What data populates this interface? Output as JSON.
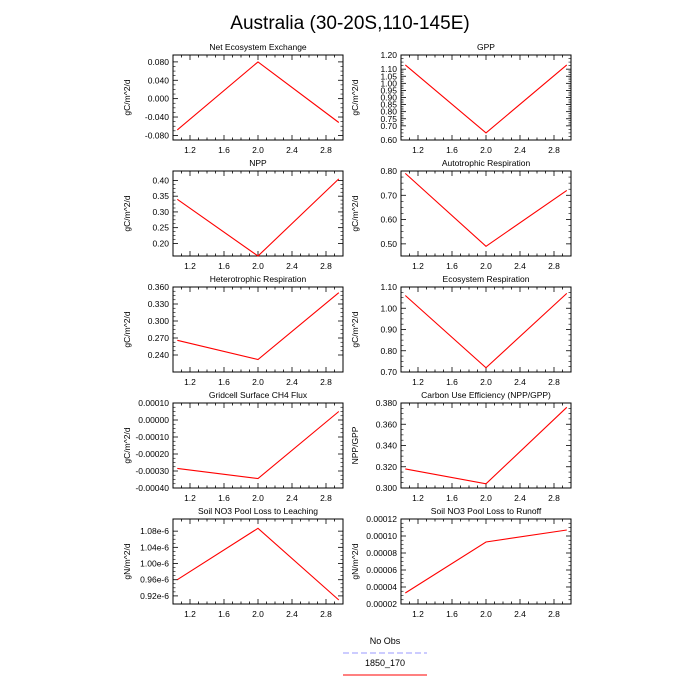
{
  "title": "Australia (30-20S,110-145E)",
  "legend": {
    "placement": "bottom-center",
    "entries": [
      {
        "label": "No Obs",
        "color": "#9999ff",
        "dash": true
      },
      {
        "label": "1850_170",
        "color": "#ff0000",
        "dash": false
      }
    ]
  },
  "chart_data": [
    {
      "type": "line",
      "title": "Net Ecosystem Exchange",
      "ylabel": "gC/m^2/d",
      "xlim": [
        1,
        3
      ],
      "ylim": [
        -0.09,
        0.095
      ],
      "xticks": [
        "1.2",
        "1.6",
        "2.0",
        "2.4",
        "2.8"
      ],
      "yticks": [
        -0.08,
        -0.04,
        0.0,
        0.04,
        0.08
      ],
      "yticklabels": [
        "-0.080",
        "-0.040",
        "0.000",
        "0.040",
        "0.080"
      ],
      "series": [
        {
          "color": "#ff0000",
          "x": [
            1.05,
            2.0,
            2.95
          ],
          "y": [
            -0.068,
            0.08,
            -0.052
          ]
        }
      ]
    },
    {
      "type": "line",
      "title": "GPP",
      "ylabel": "gC/m^2/d",
      "xlim": [
        1,
        3
      ],
      "ylim": [
        0.6,
        1.2
      ],
      "xticks": [
        "1.2",
        "1.6",
        "2.0",
        "2.4",
        "2.8"
      ],
      "yticks": [
        0.6,
        0.7,
        0.75,
        0.8,
        0.85,
        0.9,
        0.95,
        1.0,
        1.05,
        1.1,
        1.2
      ],
      "yticklabels": [
        "0.60",
        "0.70",
        "0.75",
        "0.80",
        "0.85",
        "0.90",
        "0.95",
        "1.00",
        "1.05",
        "1.10",
        "1.20"
      ],
      "series": [
        {
          "color": "#ff0000",
          "x": [
            1.05,
            2.0,
            2.95
          ],
          "y": [
            1.13,
            0.65,
            1.13
          ]
        }
      ]
    },
    {
      "type": "line",
      "title": "NPP",
      "ylabel": "gC/m^2/d",
      "xlim": [
        1,
        3
      ],
      "ylim": [
        0.16,
        0.43
      ],
      "xticks": [
        "1.2",
        "1.6",
        "2.0",
        "2.4",
        "2.8"
      ],
      "yticks": [
        0.2,
        0.25,
        0.3,
        0.35,
        0.4
      ],
      "yticklabels": [
        "0.20",
        "0.25",
        "0.30",
        "0.35",
        "0.40"
      ],
      "series": [
        {
          "color": "#ff0000",
          "x": [
            1.05,
            2.0,
            2.95
          ],
          "y": [
            0.34,
            0.16,
            0.405
          ]
        }
      ]
    },
    {
      "type": "line",
      "title": "Autotrophic Respiration",
      "ylabel": "gC/m^2/d",
      "xlim": [
        1,
        3
      ],
      "ylim": [
        0.45,
        0.8
      ],
      "xticks": [
        "1.2",
        "1.6",
        "2.0",
        "2.4",
        "2.8"
      ],
      "yticks": [
        0.5,
        0.6,
        0.7,
        0.8
      ],
      "yticklabels": [
        "0.50",
        "0.60",
        "0.70",
        "0.80"
      ],
      "series": [
        {
          "color": "#ff0000",
          "x": [
            1.05,
            2.0,
            2.95
          ],
          "y": [
            0.79,
            0.49,
            0.72
          ]
        }
      ]
    },
    {
      "type": "line",
      "title": "Heterotrophic Respiration",
      "ylabel": "gC/m^2/d",
      "xlim": [
        1,
        3
      ],
      "ylim": [
        0.21,
        0.36
      ],
      "xticks": [
        "1.2",
        "1.6",
        "2.0",
        "2.4",
        "2.8"
      ],
      "yticks": [
        0.24,
        0.27,
        0.3,
        0.33,
        0.36
      ],
      "yticklabels": [
        "0.240",
        "0.270",
        "0.300",
        "0.330",
        "0.360"
      ],
      "series": [
        {
          "color": "#ff0000",
          "x": [
            1.05,
            2.0,
            2.95
          ],
          "y": [
            0.266,
            0.232,
            0.35
          ]
        }
      ]
    },
    {
      "type": "line",
      "title": "Ecosystem Respiration",
      "ylabel": "gC/m^2/d",
      "xlim": [
        1,
        3
      ],
      "ylim": [
        0.7,
        1.1
      ],
      "xticks": [
        "1.2",
        "1.6",
        "2.0",
        "2.4",
        "2.8"
      ],
      "yticks": [
        0.7,
        0.8,
        0.9,
        1.0,
        1.1
      ],
      "yticklabels": [
        "0.70",
        "0.80",
        "0.90",
        "1.00",
        "1.10"
      ],
      "series": [
        {
          "color": "#ff0000",
          "x": [
            1.05,
            2.0,
            2.95
          ],
          "y": [
            1.06,
            0.72,
            1.07
          ]
        }
      ]
    },
    {
      "type": "line",
      "title": "Gridcell Surface CH4 Flux",
      "ylabel": "gC/m^2/d",
      "xlim": [
        1,
        3
      ],
      "ylim": [
        -0.0004,
        0.0001
      ],
      "xticks": [
        "1.2",
        "1.6",
        "2.0",
        "2.4",
        "2.8"
      ],
      "yticks": [
        -0.0004,
        -0.0003,
        -0.0002,
        -0.0001,
        0.0,
        0.0001
      ],
      "yticklabels": [
        "-0.00040",
        "-0.00030",
        "-0.00020",
        "-0.00010",
        "0.00000",
        "0.00010"
      ],
      "series": [
        {
          "color": "#ff0000",
          "x": [
            1.05,
            2.0,
            2.95
          ],
          "y": [
            -0.000285,
            -0.000345,
            5e-05
          ]
        }
      ]
    },
    {
      "type": "line",
      "title": "Carbon Use Efficiency (NPP/GPP)",
      "ylabel": "NPP/GPP",
      "xlim": [
        1,
        3
      ],
      "ylim": [
        0.3,
        0.38
      ],
      "xticks": [
        "1.2",
        "1.6",
        "2.0",
        "2.4",
        "2.8"
      ],
      "yticks": [
        0.3,
        0.32,
        0.34,
        0.36,
        0.38
      ],
      "yticklabels": [
        "0.300",
        "0.320",
        "0.340",
        "0.360",
        "0.380"
      ],
      "series": [
        {
          "color": "#ff0000",
          "x": [
            1.05,
            2.0,
            2.95
          ],
          "y": [
            0.318,
            0.304,
            0.376
          ]
        }
      ]
    },
    {
      "type": "line",
      "title": "Soil NO3 Pool Loss to Leaching",
      "ylabel": "gN/m^2/d",
      "xlim": [
        1,
        3
      ],
      "ylim": [
        9e-07,
        1.11e-06
      ],
      "xticks": [
        "1.2",
        "1.6",
        "2.0",
        "2.4",
        "2.8"
      ],
      "yticks": [
        9.2e-07,
        9.6e-07,
        1e-06,
        1.04e-06,
        1.08e-06
      ],
      "yticklabels": [
        "0.92e-6",
        "0.96e-6",
        "1.00e-6",
        "1.04e-6",
        "1.08e-6"
      ],
      "series": [
        {
          "color": "#ff0000",
          "x": [
            1.05,
            2.0,
            2.95
          ],
          "y": [
            9.6e-07,
            1.087e-06,
            9.1e-07
          ]
        }
      ]
    },
    {
      "type": "line",
      "title": "Soil NO3 Pool Loss to Runoff",
      "ylabel": "gN/m^2/d",
      "xlim": [
        1,
        3
      ],
      "ylim": [
        2e-05,
        0.00012
      ],
      "xticks": [
        "1.2",
        "1.6",
        "2.0",
        "2.4",
        "2.8"
      ],
      "yticks": [
        2e-05,
        4e-05,
        6e-05,
        8e-05,
        0.0001,
        0.00012
      ],
      "yticklabels": [
        "0.00002",
        "0.00004",
        "0.00006",
        "0.00008",
        "0.00010",
        "0.00012"
      ],
      "series": [
        {
          "color": "#ff0000",
          "x": [
            1.05,
            2.0,
            2.95
          ],
          "y": [
            3.3e-05,
            9.3e-05,
            0.000107
          ]
        }
      ]
    }
  ]
}
